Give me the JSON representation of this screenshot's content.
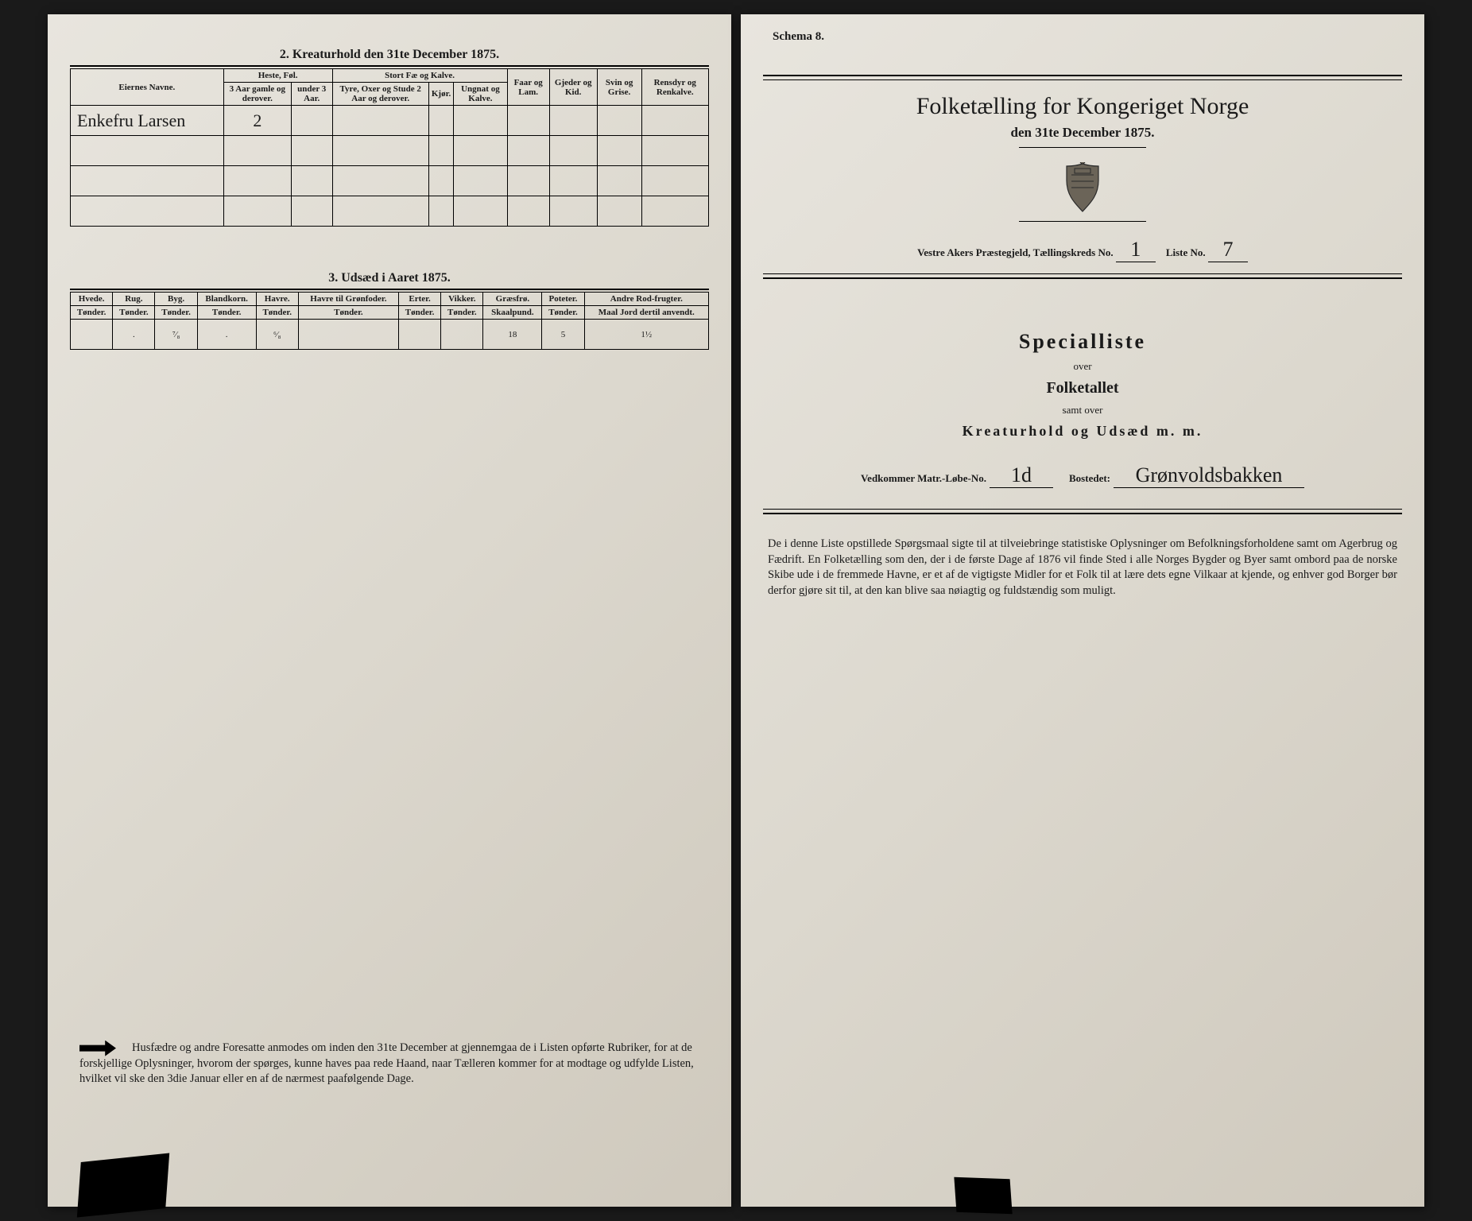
{
  "left": {
    "sec2_title": "2.  Kreaturhold den 31te December 1875.",
    "table2": {
      "col_owner": "Eiernes Navne.",
      "grp_heste": "Heste, Føl.",
      "grp_storfe": "Stort Fæ og Kalve.",
      "col_faar": "Faar og Lam.",
      "col_gjeder": "Gjeder og Kid.",
      "col_svin": "Svin og Grise.",
      "col_rensdyr": "Rensdyr og Renkalve.",
      "sub_h1": "3 Aar gamle og derover.",
      "sub_h2": "under 3 Aar.",
      "sub_s1": "Tyre, Oxer og Stude 2 Aar og derover.",
      "sub_s2": "Kjør.",
      "sub_s3": "Ungnat og Kalve.",
      "rows": [
        {
          "owner": "Enkefru Larsen",
          "v": [
            "2",
            "",
            "",
            "",
            "",
            "",
            "",
            "",
            ""
          ]
        }
      ]
    },
    "sec3_title": "3.  Udsæd i Aaret 1875.",
    "table3": {
      "cols": [
        {
          "h": "Hvede.",
          "u": "Tønder."
        },
        {
          "h": "Rug.",
          "u": "Tønder."
        },
        {
          "h": "Byg.",
          "u": "Tønder."
        },
        {
          "h": "Blandkorn.",
          "u": "Tønder."
        },
        {
          "h": "Havre.",
          "u": "Tønder."
        },
        {
          "h": "Havre til Grønfoder.",
          "u": "Tønder."
        },
        {
          "h": "Erter.",
          "u": "Tønder."
        },
        {
          "h": "Vikker.",
          "u": "Tønder."
        },
        {
          "h": "Græsfrø.",
          "u": "Skaalpund."
        },
        {
          "h": "Poteter.",
          "u": "Tønder."
        },
        {
          "h": "Andre Rod-frugter.",
          "u": "Maal Jord dertil anvendt."
        }
      ],
      "values": [
        "",
        ".",
        "⁷⁄₈",
        ".",
        "⁶⁄₈",
        "",
        "",
        "",
        "18",
        "5",
        "1½"
      ]
    },
    "footnote": "Husfædre og andre Foresatte anmodes om inden den 31te December at gjennemgaa de i Listen opførte Rubriker, for at de forskjellige Oplysninger, hvorom der spørges, kunne haves paa rede Haand, naar Tælleren kommer for at modtage og udfylde Listen, hvilket vil ske den 3die Januar eller en af de nærmest paafølgende Dage."
  },
  "right": {
    "schema": "Schema 8.",
    "title1": "Folketælling for Kongeriget Norge",
    "title2": "den 31te December 1875.",
    "parish_line_pre": "Vestre Akers Præstegjeld,  Tællingskreds No.",
    "kreds_no": "1",
    "liste_lbl": "Liste No.",
    "liste_no": "7",
    "spec": "Specialliste",
    "over": "over",
    "folketallet": "Folketallet",
    "samt": "samt over",
    "kreatur": "Kreaturhold og Udsæd m. m.",
    "matr_lbl": "Vedkommer Matr.-Løbe-No.",
    "matr_no": "1d",
    "bosted_lbl": "Bostedet:",
    "bosted": "Grønvoldsbakken",
    "bottom": "De i denne Liste opstillede Spørgsmaal sigte til at tilveiebringe statistiske Oplysninger om Befolkningsforholdene samt om Agerbrug og Fædrift.  En Folketælling som den, der i de første Dage af 1876 vil finde Sted i alle Norges Bygder og Byer samt ombord paa de norske Skibe ude i de fremmede Havne, er et af de vigtigste Midler for et Folk til at lære dets egne Vilkaar at kjende, og enhver god Borger bør derfor gjøre sit til, at den kan blive saa nøiagtig og fuldstændig som muligt."
  }
}
